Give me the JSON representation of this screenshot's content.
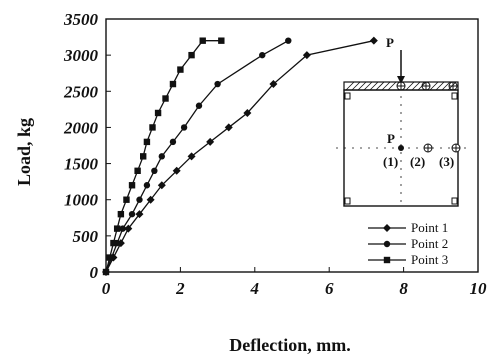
{
  "chart_data": {
    "type": "line",
    "title": "",
    "xlabel": "Deflection, mm.",
    "ylabel": "Load, kg",
    "xlim": [
      0,
      10
    ],
    "ylim": [
      0,
      3500
    ],
    "xticks": [
      0,
      2,
      4,
      6,
      8,
      10
    ],
    "yticks": [
      0,
      500,
      1000,
      1500,
      2000,
      2500,
      3000,
      3500
    ],
    "grid": false,
    "legend_position": "bottom-right",
    "series": [
      {
        "name": "Point 1",
        "marker": "diamond",
        "color": "#111111",
        "x": [
          0,
          0.2,
          0.4,
          0.6,
          0.9,
          1.2,
          1.5,
          1.9,
          2.3,
          2.8,
          3.3,
          3.8,
          4.5,
          5.4,
          7.2
        ],
        "y": [
          0,
          200,
          400,
          600,
          800,
          1000,
          1200,
          1400,
          1600,
          1800,
          2000,
          2200,
          2600,
          3000,
          3200
        ]
      },
      {
        "name": "Point 2",
        "marker": "circle",
        "color": "#111111",
        "x": [
          0,
          0.15,
          0.3,
          0.45,
          0.7,
          0.9,
          1.1,
          1.3,
          1.5,
          1.8,
          2.1,
          2.5,
          3.0,
          4.2,
          4.9
        ],
        "y": [
          0,
          200,
          400,
          600,
          800,
          1000,
          1200,
          1400,
          1600,
          1800,
          2000,
          2300,
          2600,
          3000,
          3200
        ]
      },
      {
        "name": "Point 3",
        "marker": "square",
        "color": "#111111",
        "x": [
          0,
          0.1,
          0.2,
          0.3,
          0.4,
          0.55,
          0.7,
          0.85,
          1.0,
          1.1,
          1.25,
          1.4,
          1.6,
          1.8,
          2.0,
          2.3,
          2.6,
          3.1
        ],
        "y": [
          0,
          200,
          400,
          600,
          800,
          1000,
          1200,
          1400,
          1600,
          1800,
          2000,
          2200,
          2400,
          2600,
          2800,
          3000,
          3200,
          3200
        ]
      }
    ],
    "inset": {
      "load_label": "P",
      "center_label": "P",
      "point_labels": [
        "(1)",
        "(2)",
        "(3)"
      ]
    }
  }
}
